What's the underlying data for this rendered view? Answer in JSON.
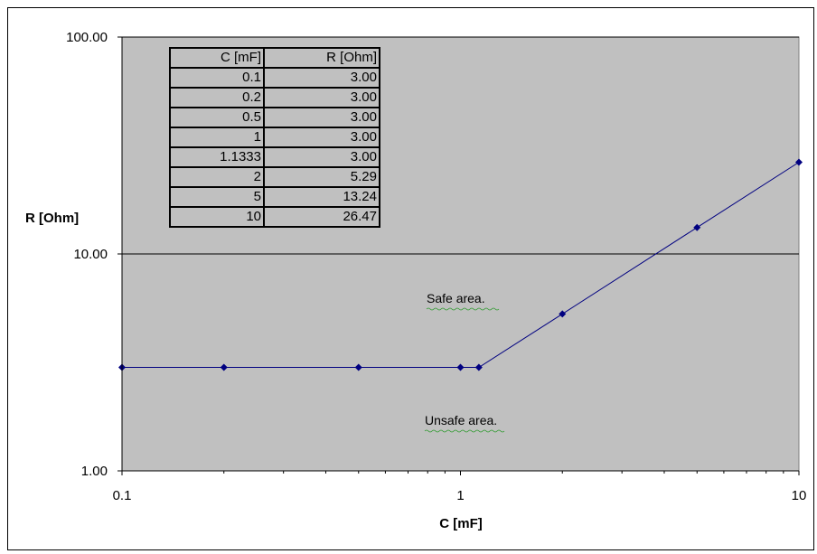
{
  "chart_data": {
    "type": "line",
    "x_scale": "log",
    "y_scale": "log",
    "xlim": [
      0.1,
      10
    ],
    "ylim": [
      1,
      100
    ],
    "xlabel": "C [mF]",
    "ylabel": "R [Ohm]",
    "x_ticks": [
      "0.1",
      "1",
      "10"
    ],
    "y_ticks": [
      "1.00",
      "10.00",
      "100.00"
    ],
    "grid": "horizontal major gridlines",
    "plot_background": "#c0c0c0",
    "line_color": "#000080",
    "series": [
      {
        "x": [
          0.1,
          0.2,
          0.5,
          1,
          1.1333,
          2,
          5,
          10
        ],
        "y": [
          3.0,
          3.0,
          3.0,
          3.0,
          3.0,
          5.29,
          13.24,
          26.47
        ]
      }
    ],
    "annotations": [
      "Safe area.",
      "Unsafe area."
    ],
    "table": {
      "headers": [
        "C [mF]",
        "R [Ohm]"
      ],
      "rows": [
        [
          "0.1",
          "3.00"
        ],
        [
          "0.2",
          "3.00"
        ],
        [
          "0.5",
          "3.00"
        ],
        [
          "1",
          "3.00"
        ],
        [
          "1.1333",
          "3.00"
        ],
        [
          "2",
          "5.29"
        ],
        [
          "5",
          "13.24"
        ],
        [
          "10",
          "26.47"
        ]
      ]
    }
  }
}
